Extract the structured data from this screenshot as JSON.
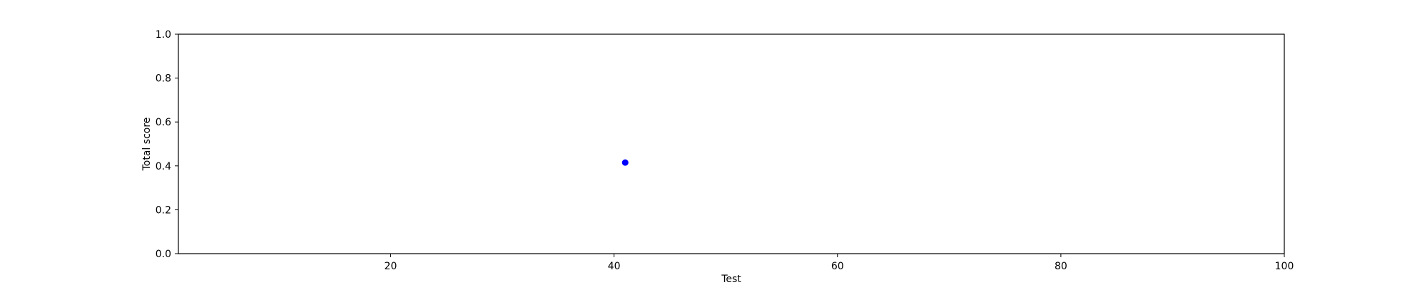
{
  "chart_data": {
    "type": "scatter",
    "title": "",
    "xlabel": "Test",
    "ylabel": "Total score",
    "xlim": [
      1,
      100
    ],
    "ylim": [
      0.0,
      1.0
    ],
    "xticks": [
      20,
      40,
      60,
      80,
      100
    ],
    "xtick_labels": [
      "20",
      "40",
      "60",
      "80",
      "100"
    ],
    "yticks": [
      0.0,
      0.2,
      0.4,
      0.6,
      0.8,
      1.0
    ],
    "ytick_labels": [
      "0.0",
      "0.2",
      "0.4",
      "0.6",
      "0.8",
      "1.0"
    ],
    "grid": false,
    "legend": "none",
    "points": [
      {
        "x": 41,
        "y": 0.415
      }
    ],
    "colors": {
      "marker": "#0000ff",
      "axes": "#000000",
      "background": "#ffffff"
    }
  }
}
